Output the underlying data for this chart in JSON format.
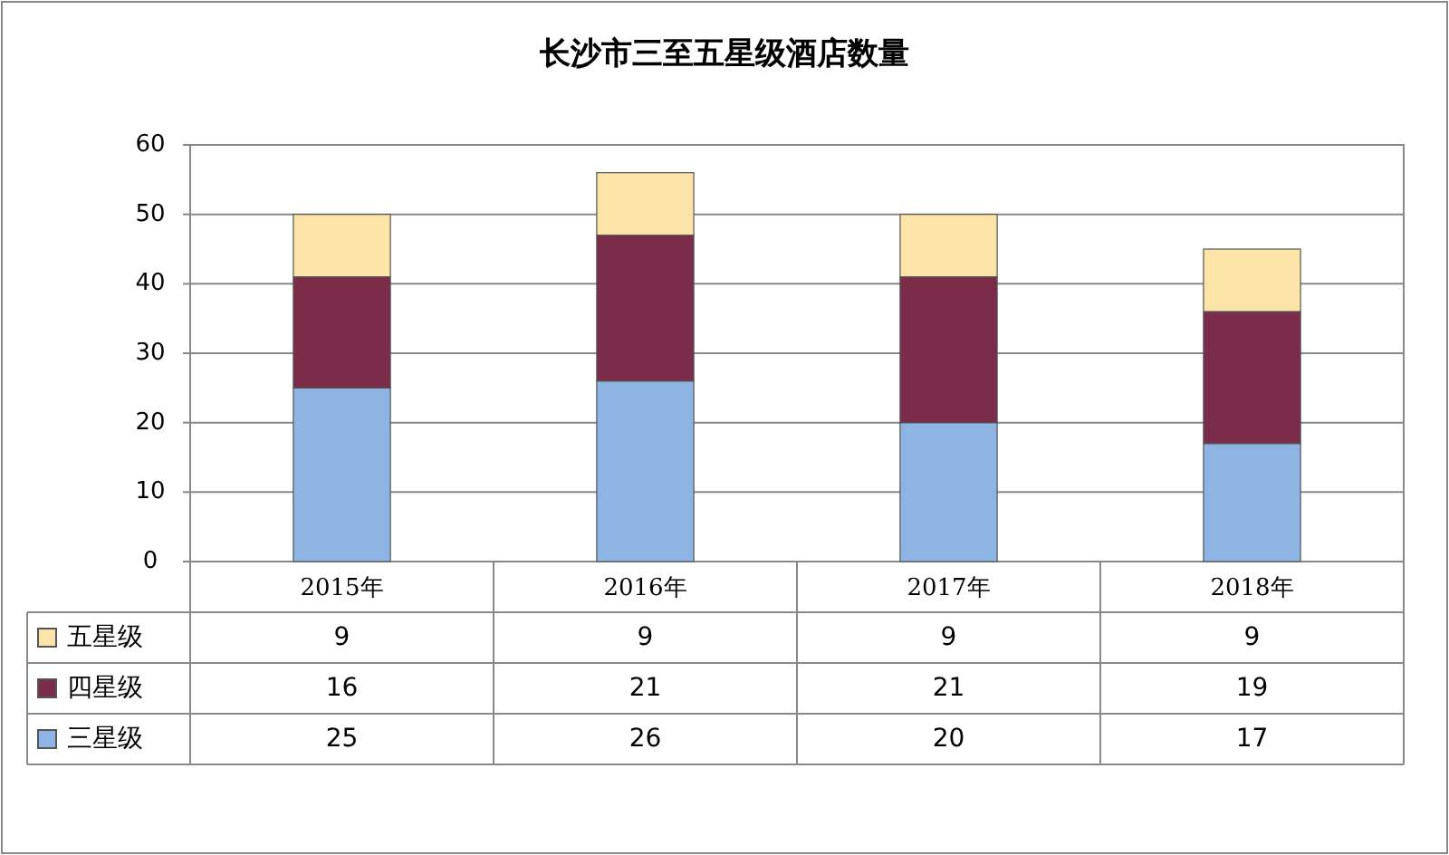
{
  "chart_data": {
    "type": "bar",
    "title": "长沙市三至五星级酒店数量",
    "categories": [
      "2015年",
      "2016年",
      "2017年",
      "2018年"
    ],
    "series": [
      {
        "name": "三星级",
        "color": "#8db4e2",
        "values": [
          25,
          26,
          20,
          17
        ]
      },
      {
        "name": "四星级",
        "color": "#7b2c48",
        "values": [
          16,
          21,
          21,
          19
        ]
      },
      {
        "name": "五星级",
        "color": "#fce4a8",
        "values": [
          9,
          9,
          9,
          9
        ]
      }
    ],
    "stacked": true,
    "ylim": [
      0,
      60
    ],
    "yticks": [
      0,
      10,
      20,
      30,
      40,
      50,
      60
    ],
    "grid": "y",
    "data_labels": true,
    "legend": "bottom"
  }
}
